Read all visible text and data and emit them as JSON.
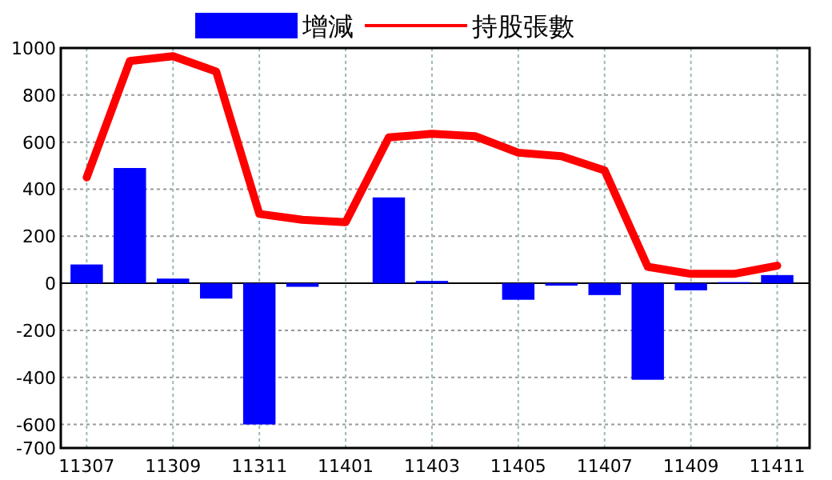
{
  "chart_data": {
    "type": "bar",
    "categories": [
      "11307",
      null,
      "11309",
      null,
      "11311",
      null,
      "11401",
      null,
      "11403",
      null,
      "11405",
      null,
      "11407",
      null,
      "11409",
      null,
      "11411"
    ],
    "series": [
      {
        "name": "增減",
        "color": "#0000ff",
        "values": [
          80,
          490,
          20,
          -65,
          -600,
          -15,
          0,
          365,
          10,
          0,
          -70,
          -10,
          -50,
          -410,
          -30,
          5,
          35
        ]
      },
      {
        "name": "持股張數",
        "type": "line",
        "color": "#ff0000",
        "values": [
          450,
          945,
          965,
          900,
          295,
          270,
          260,
          620,
          635,
          625,
          555,
          540,
          480,
          70,
          40,
          40,
          75
        ]
      }
    ],
    "ylim": [
      -700,
      1000
    ],
    "yticks": [
      -700,
      -600,
      -400,
      -200,
      0,
      200,
      400,
      600,
      800,
      1000
    ],
    "grid": true,
    "legend": "top"
  }
}
